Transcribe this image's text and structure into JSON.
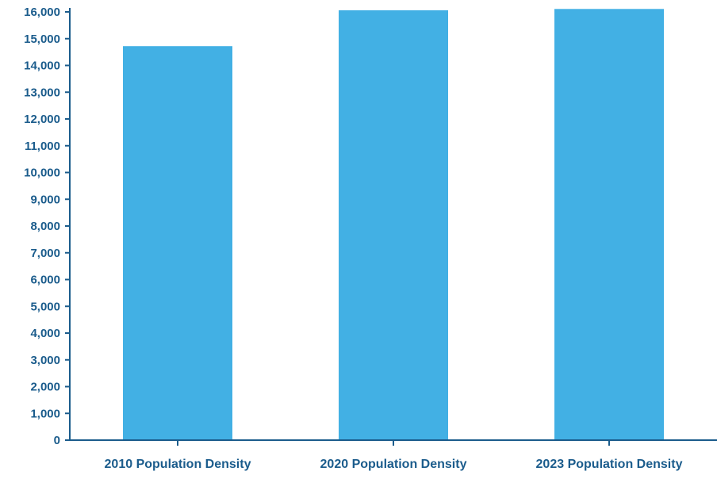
{
  "chart_data": {
    "type": "bar",
    "categories": [
      "2010 Population Density",
      "2020 Population Density",
      "2023 Population Density"
    ],
    "values": [
      14720,
      16060,
      16110
    ],
    "ylim": [
      0,
      16000
    ],
    "yticks": [
      0,
      1000,
      2000,
      3000,
      4000,
      5000,
      6000,
      7000,
      8000,
      9000,
      10000,
      11000,
      12000,
      13000,
      14000,
      15000,
      16000
    ],
    "ytick_labels": [
      "0",
      "1,000",
      "2,000",
      "3,000",
      "4,000",
      "5,000",
      "6,000",
      "7,000",
      "8,000",
      "9,000",
      "10,000",
      "11,000",
      "12,000",
      "13,000",
      "14,000",
      "15,000",
      "16,000"
    ],
    "grid": false,
    "legend": "none",
    "title": "",
    "xlabel": "",
    "ylabel": "",
    "colors": {
      "bar": "#42B0E4",
      "axis": "#1B5C8C",
      "text": "#1B5C8C"
    }
  }
}
